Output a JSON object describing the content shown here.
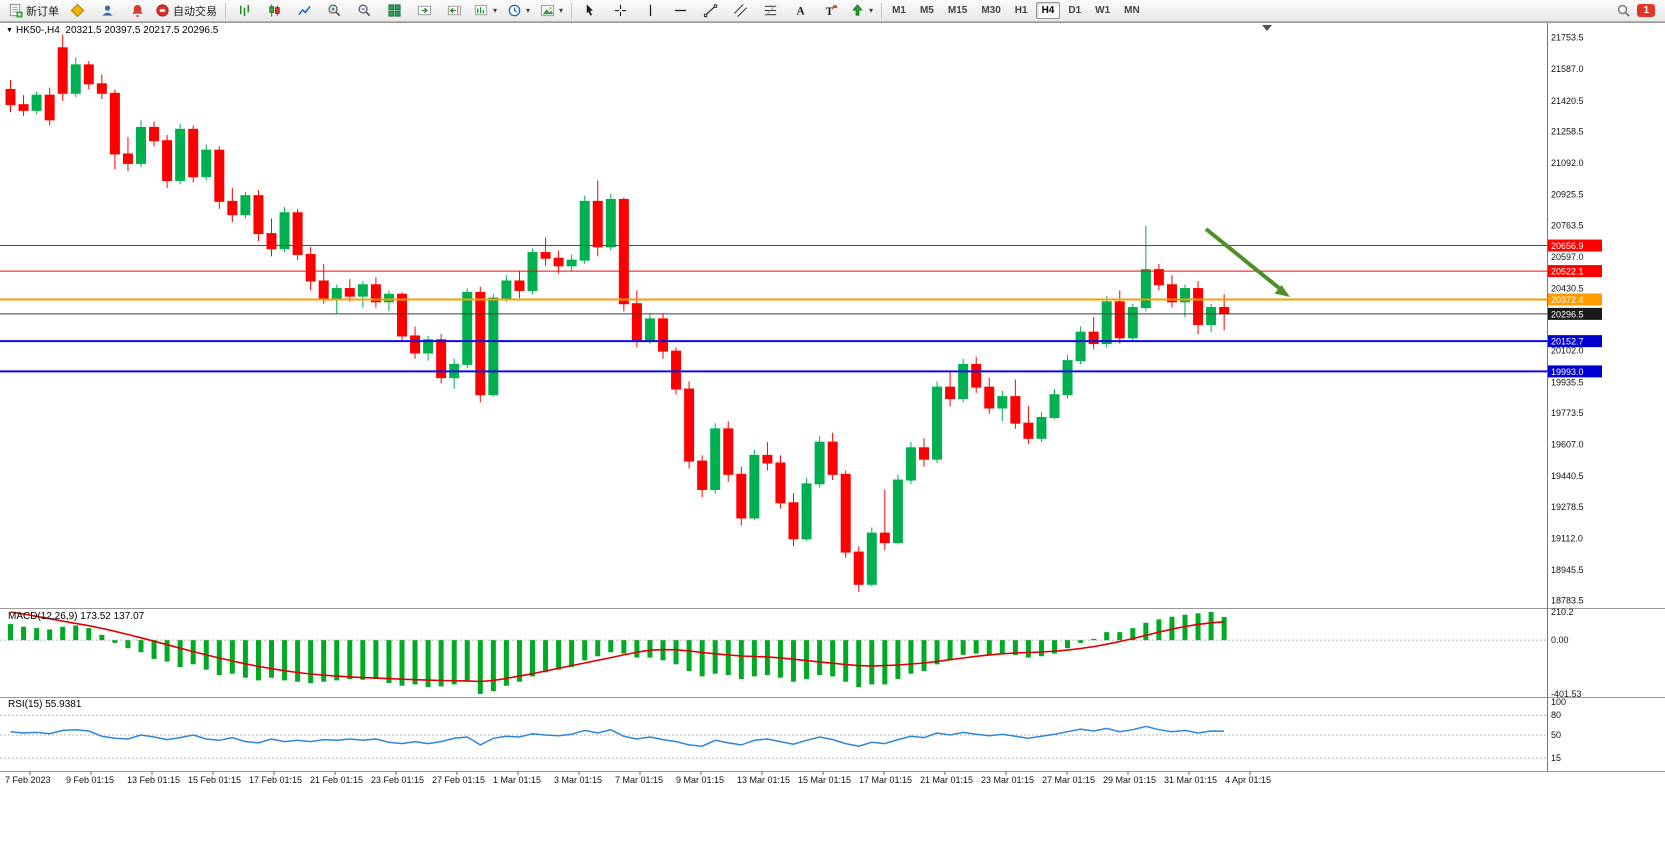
{
  "toolbar": {
    "new_order_label": "新订单",
    "auto_trading_label": "自动交易",
    "left_icons": [
      "metaeditor-icon",
      "accounts-icon",
      "alerts-icon"
    ],
    "chart_icons": [
      "bar-chart-icon",
      "candlestick-chart-icon",
      "line-chart-icon",
      "zoom-in-icon",
      "zoom-out-icon",
      "tile-windows-icon",
      "auto-scroll-icon",
      "chart-shift-icon",
      "new-chart-icon",
      "period-icon",
      "template-icon"
    ],
    "draw_icons": [
      "cursor-icon",
      "crosshair-icon",
      "vertical-line-icon",
      "horizontal-line-icon",
      "trendline-icon",
      "channel-icon",
      "fibonacci-icon",
      "text-icon",
      "label-icon",
      "arrows-icon"
    ],
    "timeframes": [
      "M1",
      "M5",
      "M15",
      "M30",
      "H1",
      "H4",
      "D1",
      "W1",
      "MN"
    ],
    "active_timeframe": "H4",
    "right_icons": [
      "magnifier-icon"
    ],
    "notification_badge": "1"
  },
  "chart": {
    "collapse_glyph": "▼",
    "header_symbol": "HK50-,H4",
    "header_ohlc": "20321.5 20397.5 20217.5 20296.5"
  },
  "indicators": {
    "macd": {
      "name_label": "MACD(12,26,9)",
      "histogram_value": "173.52",
      "signal_value": "137.07",
      "axis_labels": [
        "210.2",
        "0.00",
        "-401.53"
      ]
    },
    "rsi": {
      "name_label": "RSI(15)",
      "value": "55.9381",
      "axis_labels": [
        "100",
        "80",
        "50",
        "15"
      ]
    }
  },
  "chart_data": {
    "type": "candlestick",
    "symbol": "HK50-",
    "timeframe": "H4",
    "current_ohlc": {
      "open": 20321.5,
      "high": 20397.5,
      "low": 20217.5,
      "close": 20296.5
    },
    "price_range": [
      18745,
      21815
    ],
    "price_axis_labels": [
      "21753.5",
      "21587.0",
      "21420.5",
      "21258.5",
      "21092.0",
      "20925.5",
      "20763.5",
      "20597.0",
      "20430.5",
      "20102.0",
      "19935.5",
      "19773.5",
      "19607.0",
      "19440.5",
      "19278.5",
      "19112.0",
      "18945.5",
      "18783.5"
    ],
    "time_axis_labels": [
      "7 Feb 2023",
      "9 Feb 01:15",
      "13 Feb 01:15",
      "15 Feb 01:15",
      "17 Feb 01:15",
      "21 Feb 01:15",
      "23 Feb 01:15",
      "27 Feb 01:15",
      "1 Mar 01:15",
      "3 Mar 01:15",
      "7 Mar 01:15",
      "9 Mar 01:15",
      "13 Mar 01:15",
      "15 Mar 01:15",
      "17 Mar 01:15",
      "21 Mar 01:15",
      "23 Mar 01:15",
      "27 Mar 01:15",
      "29 Mar 01:15",
      "31 Mar 01:15",
      "4 Apr 01:15"
    ],
    "horizontal_levels": [
      {
        "price": 20656.9,
        "label": "20656.9",
        "color": "#FF0000",
        "label_bg": "#FF0000",
        "width": 1
      },
      {
        "price": 20522.1,
        "label": "20522.1",
        "color": "#FF0000",
        "label_bg": "#FF0000",
        "width": 1
      },
      {
        "price": 20372.4,
        "label": "20372.4",
        "color": "#FF9C00",
        "label_bg": "#FF9C00",
        "width": 2
      },
      {
        "price": 20296.5,
        "label": "20296.5",
        "color": "#3C3C3C",
        "label_bg": "#1A1A1A",
        "width": 1
      },
      {
        "price": 20152.7,
        "label": "20152.7",
        "color": "#0B0BE0",
        "label_bg": "#0000D0",
        "width": 2
      },
      {
        "price": 19993.0,
        "label": "19993.0",
        "color": "#0B0BE0",
        "label_bg": "#0000D0",
        "width": 2
      }
    ],
    "arrow_annotation": {
      "color": "#4E8F28",
      "direction": "down-right"
    },
    "bull_color": "#00B050",
    "bear_color": "#FF0000",
    "candles": [
      [
        21480,
        21530,
        21360,
        21400
      ],
      [
        21400,
        21450,
        21340,
        21370
      ],
      [
        21370,
        21470,
        21350,
        21450
      ],
      [
        21450,
        21490,
        21290,
        21320
      ],
      [
        21700,
        21770,
        21420,
        21460
      ],
      [
        21460,
        21650,
        21440,
        21610
      ],
      [
        21610,
        21630,
        21480,
        21510
      ],
      [
        21510,
        21560,
        21430,
        21460
      ],
      [
        21460,
        21480,
        21060,
        21140
      ],
      [
        21140,
        21230,
        21050,
        21090
      ],
      [
        21090,
        21320,
        21070,
        21280
      ],
      [
        21280,
        21310,
        21180,
        21210
      ],
      [
        21210,
        21240,
        20960,
        21000
      ],
      [
        21000,
        21300,
        20980,
        21270
      ],
      [
        21270,
        21290,
        20990,
        21020
      ],
      [
        21020,
        21190,
        21000,
        21160
      ],
      [
        21160,
        21180,
        20850,
        20890
      ],
      [
        20890,
        20960,
        20780,
        20820
      ],
      [
        20820,
        20940,
        20800,
        20920
      ],
      [
        20920,
        20950,
        20680,
        20720
      ],
      [
        20720,
        20800,
        20600,
        20640
      ],
      [
        20640,
        20860,
        20620,
        20830
      ],
      [
        20830,
        20850,
        20580,
        20610
      ],
      [
        20610,
        20650,
        20420,
        20470
      ],
      [
        20470,
        20560,
        20350,
        20380
      ],
      [
        20380,
        20450,
        20300,
        20430
      ],
      [
        20430,
        20480,
        20360,
        20390
      ],
      [
        20390,
        20470,
        20330,
        20450
      ],
      [
        20450,
        20490,
        20330,
        20360
      ],
      [
        20360,
        20420,
        20310,
        20400
      ],
      [
        20400,
        20410,
        20150,
        20180
      ],
      [
        20180,
        20230,
        20060,
        20090
      ],
      [
        20090,
        20180,
        20050,
        20160
      ],
      [
        20160,
        20190,
        19930,
        19960
      ],
      [
        19960,
        20060,
        19900,
        20030
      ],
      [
        20030,
        20430,
        20010,
        20410
      ],
      [
        20410,
        20440,
        19830,
        19870
      ],
      [
        19870,
        20400,
        19860,
        20380
      ],
      [
        20380,
        20500,
        20360,
        20470
      ],
      [
        20470,
        20520,
        20380,
        20420
      ],
      [
        20420,
        20640,
        20400,
        20620
      ],
      [
        20620,
        20700,
        20550,
        20590
      ],
      [
        20590,
        20630,
        20510,
        20550
      ],
      [
        20550,
        20610,
        20520,
        20580
      ],
      [
        20580,
        20920,
        20560,
        20890
      ],
      [
        20890,
        21000,
        20600,
        20650
      ],
      [
        20650,
        20930,
        20630,
        20900
      ],
      [
        20900,
        20910,
        20310,
        20350
      ],
      [
        20350,
        20420,
        20120,
        20160
      ],
      [
        20160,
        20300,
        20140,
        20270
      ],
      [
        20270,
        20300,
        20060,
        20100
      ],
      [
        20100,
        20120,
        19870,
        19900
      ],
      [
        19900,
        19940,
        19480,
        19520
      ],
      [
        19520,
        19550,
        19330,
        19370
      ],
      [
        19370,
        19720,
        19350,
        19690
      ],
      [
        19690,
        19730,
        19410,
        19450
      ],
      [
        19450,
        19490,
        19180,
        19220
      ],
      [
        19220,
        19580,
        19210,
        19550
      ],
      [
        19550,
        19620,
        19470,
        19510
      ],
      [
        19510,
        19550,
        19270,
        19300
      ],
      [
        19300,
        19350,
        19070,
        19110
      ],
      [
        19110,
        19430,
        19100,
        19400
      ],
      [
        19400,
        19650,
        19380,
        19620
      ],
      [
        19620,
        19670,
        19420,
        19450
      ],
      [
        19450,
        19470,
        19010,
        19040
      ],
      [
        19040,
        19070,
        18830,
        18870
      ],
      [
        18870,
        19170,
        18860,
        19140
      ],
      [
        19140,
        19370,
        19050,
        19090
      ],
      [
        19090,
        19450,
        19080,
        19420
      ],
      [
        19420,
        19620,
        19400,
        19590
      ],
      [
        19590,
        19640,
        19490,
        19530
      ],
      [
        19530,
        19940,
        19510,
        19910
      ],
      [
        19910,
        19990,
        19810,
        19850
      ],
      [
        19850,
        20060,
        19830,
        20030
      ],
      [
        20030,
        20070,
        19880,
        19910
      ],
      [
        19910,
        19960,
        19770,
        19800
      ],
      [
        19800,
        19890,
        19730,
        19860
      ],
      [
        19860,
        19950,
        19690,
        19720
      ],
      [
        19720,
        19810,
        19610,
        19640
      ],
      [
        19640,
        19780,
        19620,
        19750
      ],
      [
        19750,
        19900,
        19740,
        19870
      ],
      [
        19870,
        20080,
        19850,
        20050
      ],
      [
        20050,
        20230,
        20030,
        20200
      ],
      [
        20200,
        20280,
        20110,
        20140
      ],
      [
        20140,
        20390,
        20120,
        20360
      ],
      [
        20360,
        20420,
        20140,
        20170
      ],
      [
        20170,
        20350,
        20150,
        20330
      ],
      [
        20330,
        20760,
        20310,
        20530
      ],
      [
        20530,
        20560,
        20420,
        20450
      ],
      [
        20450,
        20500,
        20330,
        20360
      ],
      [
        20360,
        20450,
        20280,
        20430
      ],
      [
        20430,
        20470,
        20190,
        20240
      ],
      [
        20240,
        20350,
        20200,
        20330
      ],
      [
        20330,
        20400,
        20210,
        20296.5
      ]
    ],
    "macd": {
      "scale_max": 210.2,
      "scale_min": -401.53,
      "histogram_color": "#00AA22",
      "signal_color": "#E00000",
      "histogram": [
        120,
        100,
        90,
        80,
        100,
        110,
        90,
        40,
        -20,
        -60,
        -90,
        -140,
        -160,
        -200,
        -180,
        -220,
        -260,
        -250,
        -280,
        -300,
        -280,
        -300,
        -310,
        -320,
        -310,
        -300,
        -290,
        -295,
        -290,
        -320,
        -340,
        -330,
        -350,
        -345,
        -330,
        -300,
        -401,
        -380,
        -340,
        -310,
        -270,
        -240,
        -220,
        -200,
        -150,
        -120,
        -90,
        -100,
        -130,
        -130,
        -150,
        -180,
        -230,
        -270,
        -250,
        -260,
        -290,
        -270,
        -260,
        -280,
        -310,
        -290,
        -260,
        -270,
        -310,
        -350,
        -330,
        -330,
        -290,
        -250,
        -230,
        -180,
        -150,
        -110,
        -100,
        -110,
        -100,
        -110,
        -130,
        -120,
        -100,
        -60,
        -20,
        10,
        60,
        60,
        90,
        130,
        155,
        175,
        190,
        200,
        210,
        173.5
      ],
      "signal": [
        210,
        195,
        178,
        160,
        142,
        125,
        108,
        88,
        66,
        42,
        18,
        -8,
        -34,
        -60,
        -85,
        -110,
        -133,
        -155,
        -176,
        -196,
        -213,
        -228,
        -241,
        -252,
        -261,
        -268,
        -274,
        -279,
        -283,
        -287,
        -291,
        -295,
        -298,
        -301,
        -303,
        -304,
        -308,
        -300,
        -285,
        -268,
        -250,
        -230,
        -210,
        -190,
        -170,
        -150,
        -130,
        -110,
        -90,
        -75,
        -70,
        -72,
        -80,
        -92,
        -102,
        -110,
        -118,
        -122,
        -125,
        -132,
        -142,
        -152,
        -162,
        -172,
        -182,
        -190,
        -192,
        -190,
        -185,
        -178,
        -170,
        -158,
        -146,
        -133,
        -120,
        -110,
        -102,
        -96,
        -92,
        -88,
        -82,
        -74,
        -62,
        -48,
        -30,
        -10,
        12,
        36,
        60,
        82,
        102,
        118,
        130,
        137.07
      ]
    },
    "rsi": {
      "line_color": "#2E86D9",
      "scale": [
        0,
        100
      ],
      "levels": [
        80,
        50,
        15
      ],
      "values": [
        55,
        53,
        54,
        52,
        57,
        58,
        56,
        48,
        45,
        44,
        50,
        47,
        43,
        46,
        50,
        44,
        42,
        46,
        40,
        38,
        44,
        40,
        42,
        40,
        43,
        42,
        44,
        42,
        44,
        39,
        37,
        40,
        37,
        40,
        45,
        47,
        35,
        45,
        48,
        47,
        52,
        50,
        49,
        51,
        57,
        53,
        58,
        48,
        44,
        47,
        43,
        40,
        35,
        33,
        42,
        38,
        35,
        42,
        44,
        40,
        36,
        42,
        47,
        43,
        37,
        33,
        39,
        37,
        43,
        48,
        46,
        53,
        50,
        54,
        51,
        49,
        51,
        48,
        45,
        48,
        51,
        55,
        59,
        56,
        60,
        55,
        58,
        63,
        58,
        55,
        57,
        53,
        56,
        55.94
      ]
    }
  }
}
